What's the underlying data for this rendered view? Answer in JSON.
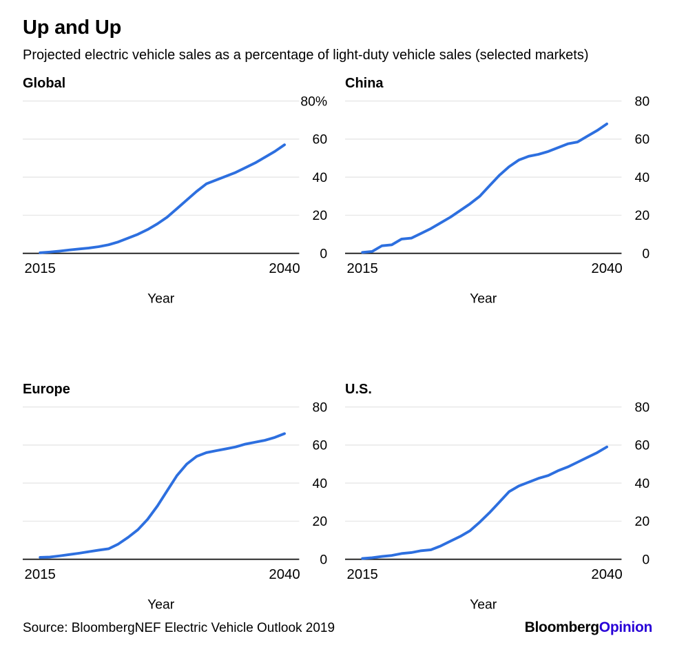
{
  "header": {
    "title": "Up and Up",
    "subtitle": "Projected electric vehicle sales as a percentage of light-duty vehicle sales (selected markets)"
  },
  "footer": {
    "source": "Source: BloombergNEF Electric Vehicle Outlook 2019",
    "brand_black": "Bloomberg",
    "brand_blue": "Opinion"
  },
  "colors": {
    "line": "#2d6fdf",
    "grid": "#e8e8e8",
    "axis": "#1a1a1a",
    "text": "#000000",
    "brand_blue": "#2800d7"
  },
  "chart_data": [
    {
      "type": "line",
      "title": "Global",
      "xlabel": "Year",
      "x": {
        "start": 2015,
        "end": 2040,
        "step": 1
      },
      "xticks": [
        2015,
        2040
      ],
      "xtick_labels": [
        "2015",
        "2040"
      ],
      "ylim": [
        0,
        80
      ],
      "yticks": [
        0,
        20,
        40,
        60,
        80
      ],
      "ytick_labels": [
        "0",
        "20",
        "40",
        "60",
        "80%"
      ],
      "values": [
        0.3,
        0.7,
        1.2,
        1.8,
        2.3,
        2.8,
        3.5,
        4.5,
        6,
        8,
        10,
        12.5,
        15.5,
        19,
        23.5,
        28,
        32.5,
        36.5,
        38.5,
        40.5,
        42.5,
        45,
        47.5,
        50.5,
        53.5,
        57
      ]
    },
    {
      "type": "line",
      "title": "China",
      "xlabel": "Year",
      "x": {
        "start": 2015,
        "end": 2040,
        "step": 1
      },
      "xticks": [
        2015,
        2040
      ],
      "xtick_labels": [
        "2015",
        "2040"
      ],
      "ylim": [
        0,
        80
      ],
      "yticks": [
        0,
        20,
        40,
        60,
        80
      ],
      "ytick_labels": [
        "0",
        "20",
        "40",
        "60",
        "80"
      ],
      "values": [
        0.5,
        1,
        4,
        4.5,
        7.5,
        8,
        10.5,
        13,
        16,
        19,
        22.5,
        26,
        30,
        35.5,
        41,
        45.5,
        49,
        51,
        52,
        53.5,
        55.5,
        57.5,
        58.5,
        61.5,
        64.5,
        68
      ]
    },
    {
      "type": "line",
      "title": "Europe",
      "xlabel": "Year",
      "x": {
        "start": 2015,
        "end": 2040,
        "step": 1
      },
      "xticks": [
        2015,
        2040
      ],
      "xtick_labels": [
        "2015",
        "2040"
      ],
      "ylim": [
        0,
        80
      ],
      "yticks": [
        0,
        20,
        40,
        60,
        80
      ],
      "ytick_labels": [
        "0",
        "20",
        "40",
        "60",
        "80"
      ],
      "values": [
        1,
        1.2,
        1.8,
        2.5,
        3.2,
        4,
        4.8,
        5.5,
        8,
        11.5,
        15.5,
        21,
        28,
        36,
        44,
        50,
        54,
        56,
        57,
        58,
        59,
        60.5,
        61.5,
        62.5,
        64,
        66
      ]
    },
    {
      "type": "line",
      "title": "U.S.",
      "xlabel": "Year",
      "x": {
        "start": 2015,
        "end": 2040,
        "step": 1
      },
      "xticks": [
        2015,
        2040
      ],
      "xtick_labels": [
        "2015",
        "2040"
      ],
      "ylim": [
        0,
        80
      ],
      "yticks": [
        0,
        20,
        40,
        60,
        80
      ],
      "ytick_labels": [
        "0",
        "20",
        "40",
        "60",
        "80"
      ],
      "values": [
        0.4,
        0.8,
        1.5,
        2,
        3,
        3.5,
        4.5,
        5,
        7,
        9.5,
        12,
        15,
        19.5,
        24.5,
        30,
        35.5,
        38.5,
        40.5,
        42.5,
        44,
        46.5,
        48.5,
        51,
        53.5,
        56,
        59
      ]
    }
  ]
}
